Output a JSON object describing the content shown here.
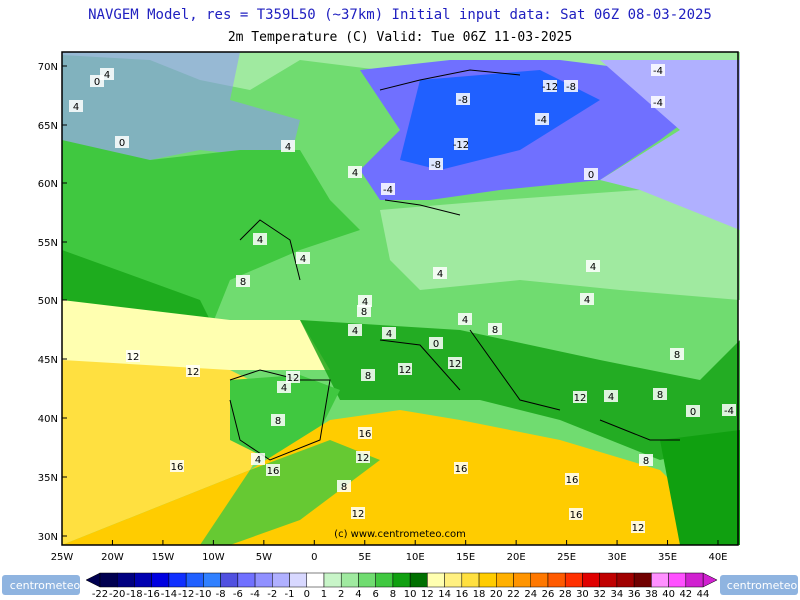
{
  "header": {
    "title": "NAVGEM Model, res = T359L50 (~37km)   Initial input data: Sat 06Z 08-03-2025",
    "subtitle": "2m Temperature (C)  Valid: Tue 06Z 11-03-2025"
  },
  "map": {
    "lat_labels": [
      "70N",
      "65N",
      "60N",
      "55N",
      "50N",
      "45N",
      "40N",
      "35N",
      "30N"
    ],
    "lon_labels": [
      "25W",
      "20W",
      "15W",
      "10W",
      "5W",
      "0",
      "5E",
      "10E",
      "15E",
      "20E",
      "25E",
      "30E",
      "35E",
      "40E"
    ],
    "contour_labels": [
      "4",
      "0",
      "4",
      "0",
      "4",
      "4",
      "-8",
      "-8",
      "-12",
      "-12",
      "-4",
      "-4",
      "-8",
      "-4",
      "-4",
      "4",
      "4",
      "0",
      "4",
      "4",
      "8",
      "4",
      "4",
      "8",
      "4",
      "8",
      "4",
      "4",
      "0",
      "8",
      "12",
      "12",
      "12",
      "12",
      "4",
      "8",
      "8",
      "12",
      "12",
      "16",
      "16",
      "16",
      "12",
      "4",
      "8",
      "16",
      "16",
      "12",
      "12",
      "16",
      "0",
      "-4",
      "8",
      "4",
      "8"
    ],
    "copyright": "(c) www.centrometeo.com"
  },
  "legend": {
    "labels": [
      -22,
      -20,
      -18,
      -16,
      -14,
      -12,
      -10,
      -8,
      -6,
      -4,
      -2,
      -1,
      0,
      1,
      2,
      4,
      6,
      8,
      10,
      12,
      14,
      16,
      18,
      20,
      22,
      24,
      26,
      28,
      30,
      32,
      34,
      36,
      38,
      40,
      42,
      44
    ],
    "colors": [
      "#000050",
      "#000080",
      "#0000b0",
      "#0000e0",
      "#1030ff",
      "#2060ff",
      "#3080ff",
      "#5050e0",
      "#7070ff",
      "#9090ff",
      "#b0b0ff",
      "#d8d8ff",
      "#ffffff",
      "#c8f5c8",
      "#a0eaa0",
      "#70dc70",
      "#40c840",
      "#10a010",
      "#007000",
      "#ffffb0",
      "#fff080",
      "#ffe040",
      "#ffcc00",
      "#ffb000",
      "#ff9400",
      "#ff7800",
      "#ff5a00",
      "#ff3000",
      "#e00000",
      "#c00000",
      "#a00000",
      "#700000",
      "#ff90ff",
      "#ff50ff",
      "#d020d0"
    ]
  },
  "logo": {
    "left": "centrometeo",
    "right": "centrometeo"
  }
}
